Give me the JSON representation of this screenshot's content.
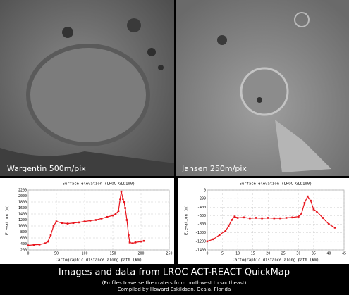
{
  "images": [
    {
      "label": "Wargentin 500m/pix"
    },
    {
      "label": "Jansen 250m/pix"
    }
  ],
  "chart_data": [
    {
      "type": "line",
      "title": "Surface elevation (LROC GLD100)",
      "x_label": "Cartographic distance along path (km)",
      "y_label": "Elevation (m)",
      "color": "#e8141c",
      "grid": true,
      "x": [
        0,
        10,
        20,
        30,
        35,
        40,
        45,
        50,
        60,
        70,
        80,
        90,
        100,
        110,
        120,
        130,
        140,
        150,
        155,
        160,
        163,
        165,
        168,
        170,
        172,
        175,
        178,
        180,
        185,
        190,
        200,
        205
      ],
      "values": [
        350,
        370,
        380,
        420,
        480,
        700,
        1000,
        1150,
        1100,
        1080,
        1100,
        1120,
        1150,
        1180,
        1200,
        1250,
        1300,
        1350,
        1400,
        1500,
        1900,
        2150,
        1900,
        1800,
        1600,
        1200,
        700,
        450,
        420,
        450,
        480,
        500
      ],
      "xlim": [
        0,
        250
      ],
      "xticks": [
        0,
        50,
        100,
        150,
        200,
        250
      ],
      "ylim": [
        200,
        2200
      ],
      "yticks": [
        200,
        400,
        600,
        800,
        1000,
        1200,
        1400,
        1600,
        1800,
        2000,
        2200
      ]
    },
    {
      "type": "line",
      "title": "Surface elevation (LROC GLD100)",
      "x_label": "Cartographic distance along path (km)",
      "y_label": "Elevation (m)",
      "color": "#e8141c",
      "grid": true,
      "x": [
        0,
        2,
        4,
        6,
        7,
        8,
        9,
        10,
        12,
        14,
        16,
        18,
        20,
        22,
        24,
        26,
        28,
        30,
        31,
        32,
        33,
        34,
        35,
        36,
        38,
        40,
        42
      ],
      "values": [
        -1200,
        -1150,
        -1050,
        -950,
        -850,
        -700,
        -620,
        -650,
        -640,
        -660,
        -650,
        -660,
        -650,
        -660,
        -660,
        -650,
        -640,
        -620,
        -550,
        -300,
        -150,
        -250,
        -450,
        -500,
        -650,
        -800,
        -880
      ],
      "xlim": [
        0,
        45
      ],
      "xticks": [
        0,
        5,
        10,
        15,
        20,
        25,
        30,
        35,
        40,
        45
      ],
      "ylim": [
        -1400,
        0
      ],
      "yticks": [
        -1400,
        -1200,
        -1000,
        -800,
        -600,
        -400,
        -200,
        0
      ]
    }
  ],
  "caption": {
    "title": "Images and data from LROC ACT-REACT QuickMap",
    "subtitle": "(Profiles traverse the craters from northwest to southeast)",
    "credit": "Compiled by Howard Eskildsen, Ocala, Florida"
  }
}
